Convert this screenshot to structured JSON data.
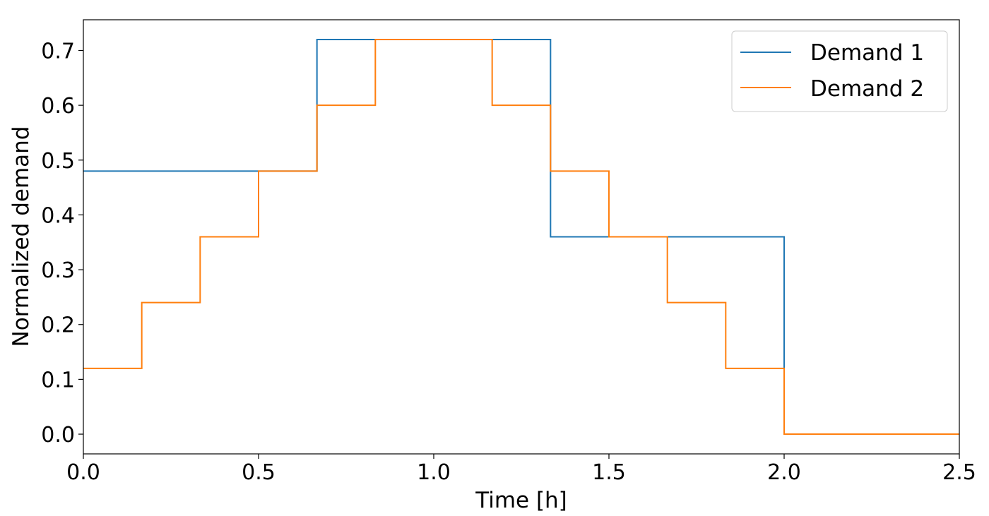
{
  "chart_data": {
    "type": "line",
    "step": "post",
    "title": "",
    "xlabel": "Time [h]",
    "ylabel": "Normalized demand",
    "xlim": [
      0,
      2.5
    ],
    "ylim": [
      -0.036,
      0.756
    ],
    "xticks": [
      0.0,
      0.5,
      1.0,
      1.5,
      2.0,
      2.5
    ],
    "xtick_labels": [
      "0.0",
      "0.5",
      "1.0",
      "1.5",
      "2.0",
      "2.5"
    ],
    "yticks": [
      0.0,
      0.1,
      0.2,
      0.3,
      0.4,
      0.5,
      0.6,
      0.7
    ],
    "ytick_labels": [
      "0.0",
      "0.1",
      "0.2",
      "0.3",
      "0.4",
      "0.5",
      "0.6",
      "0.7"
    ],
    "grid": false,
    "legend_position": "top-right",
    "series": [
      {
        "name": "Demand 1",
        "color": "#1f77b4",
        "x": [
          0,
          0.6667,
          1.3333,
          2.0,
          2.5
        ],
        "y": [
          0.48,
          0.72,
          0.36,
          0.0,
          0.0
        ]
      },
      {
        "name": "Demand 2",
        "color": "#ff7f0e",
        "x": [
          0,
          0.1667,
          0.3333,
          0.5,
          0.6667,
          0.8333,
          1.1667,
          1.3333,
          1.5,
          1.6667,
          1.8333,
          2.0,
          2.5
        ],
        "y": [
          0.12,
          0.24,
          0.36,
          0.48,
          0.6,
          0.72,
          0.6,
          0.48,
          0.36,
          0.24,
          0.12,
          0.0,
          0.0
        ]
      }
    ]
  }
}
